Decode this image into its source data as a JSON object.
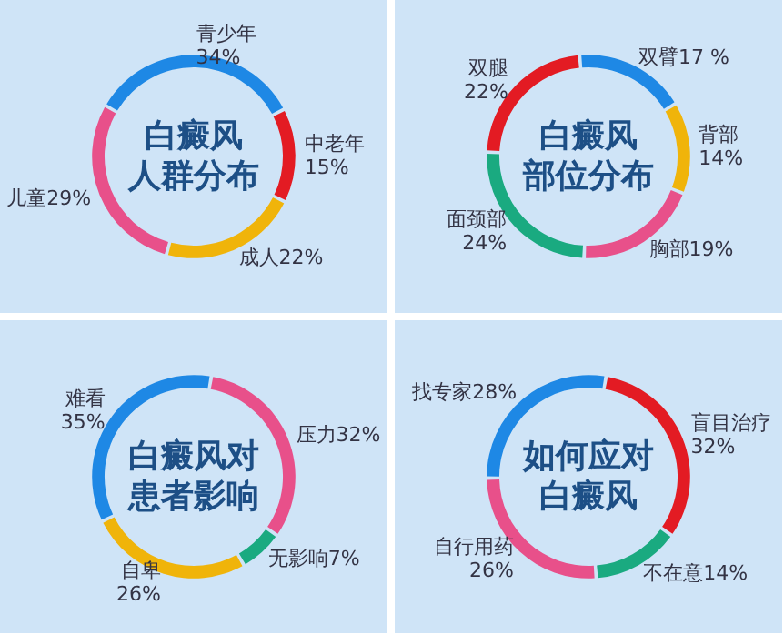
{
  "chart_data": [
    {
      "type": "donut",
      "title": "白癜风人群分布",
      "categories": [
        "青少年",
        "中老年",
        "成人",
        "儿童"
      ],
      "values": [
        34,
        15,
        22,
        29
      ],
      "value_labels": [
        "34%",
        "15%",
        "22%",
        "29%"
      ],
      "colors": [
        "#1e88e5",
        "#e31b23",
        "#f0b40a",
        "#e8508a"
      ],
      "legend": false
    },
    {
      "type": "donut",
      "title": "白癜风部位分布",
      "categories": [
        "双臂",
        "背部",
        "胸部",
        "面颈部",
        "双腿"
      ],
      "values": [
        17,
        14,
        19,
        24,
        22
      ],
      "value_labels": [
        "17 %",
        "14%",
        "19%",
        "24%",
        "22%"
      ],
      "colors": [
        "#1e88e5",
        "#f0b40a",
        "#e8508a",
        "#1aaa80",
        "#e31b23"
      ],
      "legend": false
    },
    {
      "type": "donut",
      "title": "白癜风对患者影响",
      "categories": [
        "压力",
        "无影响",
        "自卑",
        "难看"
      ],
      "values": [
        32,
        7,
        26,
        35
      ],
      "value_labels": [
        "32%",
        "7%",
        "26%",
        "35%"
      ],
      "colors": [
        "#e8508a",
        "#1aaa80",
        "#f0b40a",
        "#1e88e5"
      ],
      "legend": false
    },
    {
      "type": "donut",
      "title": "如何应对白癜风",
      "categories": [
        "盲目治疗",
        "不在意",
        "自行用药",
        "找专家"
      ],
      "values": [
        32,
        14,
        26,
        28
      ],
      "value_labels": [
        "32%",
        "14%",
        "26%",
        "28%"
      ],
      "colors": [
        "#e31b23",
        "#1aaa80",
        "#e8508a",
        "#1e88e5"
      ],
      "legend": false
    }
  ]
}
